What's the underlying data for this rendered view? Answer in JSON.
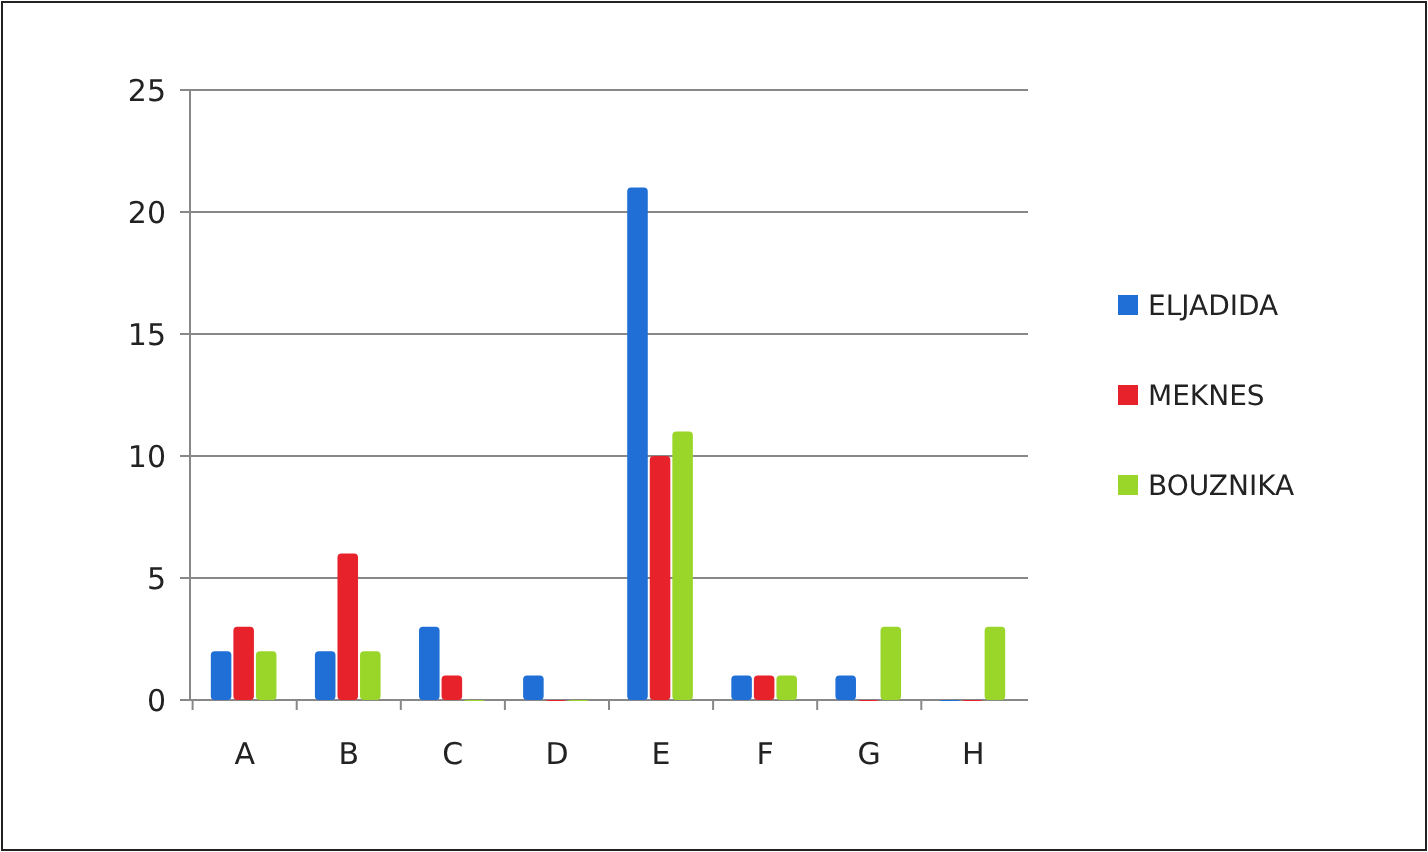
{
  "chart_data": {
    "type": "bar",
    "categories": [
      "A",
      "B",
      "C",
      "D",
      "E",
      "F",
      "G",
      "H"
    ],
    "series": [
      {
        "name": "ELJADIDA",
        "color": "#1f6fd6",
        "values": [
          2,
          2,
          3,
          1,
          21,
          1,
          1,
          0
        ]
      },
      {
        "name": "MEKNES",
        "color": "#e8222a",
        "values": [
          3,
          6,
          1,
          0,
          10,
          1,
          0,
          0
        ]
      },
      {
        "name": "BOUZNIKA",
        "color": "#9ad62a",
        "values": [
          2,
          2,
          0,
          0,
          11,
          1,
          3,
          3
        ]
      }
    ],
    "ylim": [
      0,
      25
    ],
    "yticks": [
      0,
      5,
      10,
      15,
      20,
      25
    ],
    "grid": "y",
    "legend": "right"
  }
}
